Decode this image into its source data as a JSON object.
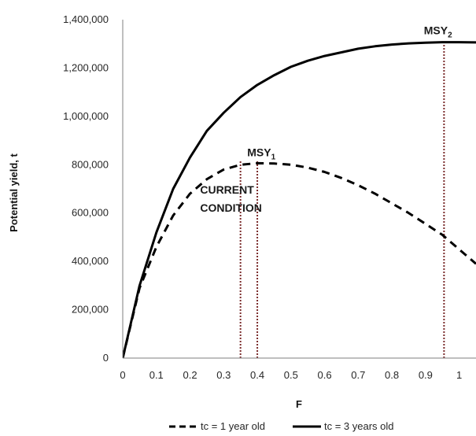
{
  "chart_data": {
    "type": "line",
    "xlabel": "F",
    "ylabel": "Potential yield, t",
    "xlim": [
      0,
      1.05
    ],
    "ylim": [
      0,
      1400000
    ],
    "x_ticks": [
      "0",
      "0.1",
      "0.2",
      "0.3",
      "0.4",
      "0.5",
      "0.6",
      "0.7",
      "0.8",
      "0.9",
      "1"
    ],
    "y_ticks": [
      "0",
      "200,000",
      "400,000",
      "600,000",
      "800,000",
      "1,000,000",
      "1,200,000",
      "1,400,000"
    ],
    "grid": false,
    "legend_position": "bottom",
    "series": [
      {
        "name": "tc = 1 year old",
        "line_style": "dashed",
        "color": "#000000",
        "x": [
          0,
          0.05,
          0.1,
          0.15,
          0.2,
          0.25,
          0.3,
          0.35,
          0.4,
          0.45,
          0.5,
          0.55,
          0.6,
          0.65,
          0.7,
          0.75,
          0.8,
          0.85,
          0.9,
          0.95,
          1.0,
          1.05
        ],
        "y": [
          0,
          290000,
          460000,
          590000,
          680000,
          740000,
          780000,
          800000,
          806000,
          805000,
          800000,
          788000,
          770000,
          745000,
          715000,
          680000,
          640000,
          600000,
          555000,
          510000,
          450000,
          390000
        ]
      },
      {
        "name": "tc = 3 years old",
        "line_style": "solid",
        "color": "#000000",
        "x": [
          0,
          0.05,
          0.1,
          0.15,
          0.2,
          0.25,
          0.3,
          0.35,
          0.4,
          0.45,
          0.5,
          0.55,
          0.6,
          0.65,
          0.7,
          0.75,
          0.8,
          0.85,
          0.9,
          0.95,
          1.0,
          1.05
        ],
        "y": [
          0,
          300000,
          520000,
          700000,
          830000,
          940000,
          1015000,
          1080000,
          1130000,
          1170000,
          1205000,
          1230000,
          1250000,
          1265000,
          1280000,
          1290000,
          1297000,
          1302000,
          1305000,
          1307000,
          1307000,
          1306000
        ]
      }
    ],
    "reference_lines": [
      {
        "x": 0.35,
        "color": "#7b2c2c",
        "style": "dotted"
      },
      {
        "x": 0.4,
        "color": "#7b2c2c",
        "style": "dotted"
      },
      {
        "x": 0.955,
        "color": "#7b2c2c",
        "style": "dotted"
      }
    ],
    "annotations": [
      {
        "text": "MSY",
        "sub": "1",
        "x": 0.37,
        "y": 835000
      },
      {
        "text": "MSY",
        "sub": "2",
        "x": 0.895,
        "y": 1340000
      },
      {
        "text": "CURRENT",
        "x": 0.23,
        "y": 680000
      },
      {
        "text": "CONDITION",
        "x": 0.23,
        "y": 605000
      }
    ]
  }
}
